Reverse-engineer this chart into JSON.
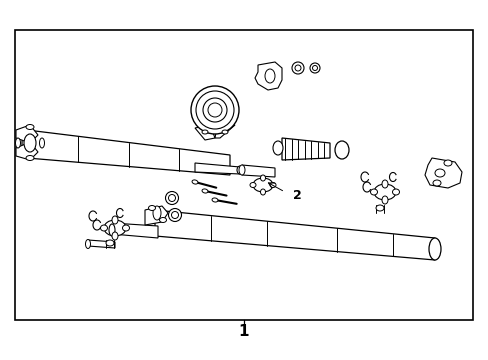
{
  "background_color": "#ffffff",
  "border_color": "#000000",
  "line_color": "#000000",
  "label_1": "1",
  "label_2": "2",
  "figsize": [
    4.89,
    3.6
  ],
  "dpi": 100,
  "border": [
    15,
    30,
    458,
    290
  ]
}
